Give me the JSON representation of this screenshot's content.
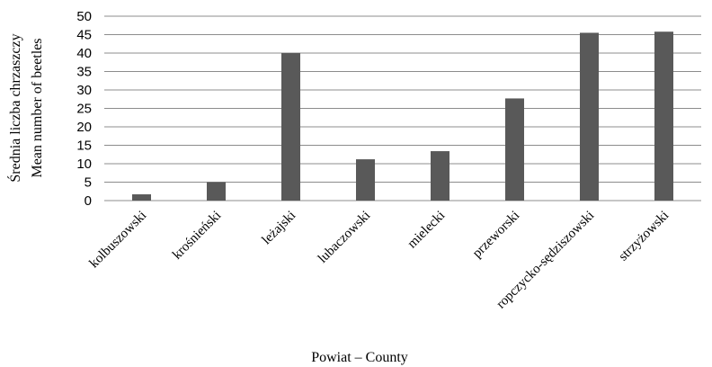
{
  "chart_data": {
    "type": "bar",
    "categories": [
      "kolbuszowski",
      "krośnieński",
      "leżajski",
      "lubaczowski",
      "mielecki",
      "przeworski",
      "ropczycko-sędziszowski",
      "strzyżowski"
    ],
    "values": [
      1.7,
      5.0,
      40.0,
      11.2,
      13.4,
      27.7,
      45.5,
      45.8
    ],
    "title": "",
    "xlabel": "Powiat – County",
    "ylabel_lines": [
      "Średnia liczba chrzaszczy",
      "Mean number of beetles"
    ],
    "ylim": [
      0,
      50
    ],
    "yticks": [
      0,
      5,
      10,
      15,
      20,
      25,
      30,
      35,
      40,
      45,
      50
    ],
    "grid": true,
    "bar_color": "#595959",
    "grid_color": "#8c8c8c"
  }
}
